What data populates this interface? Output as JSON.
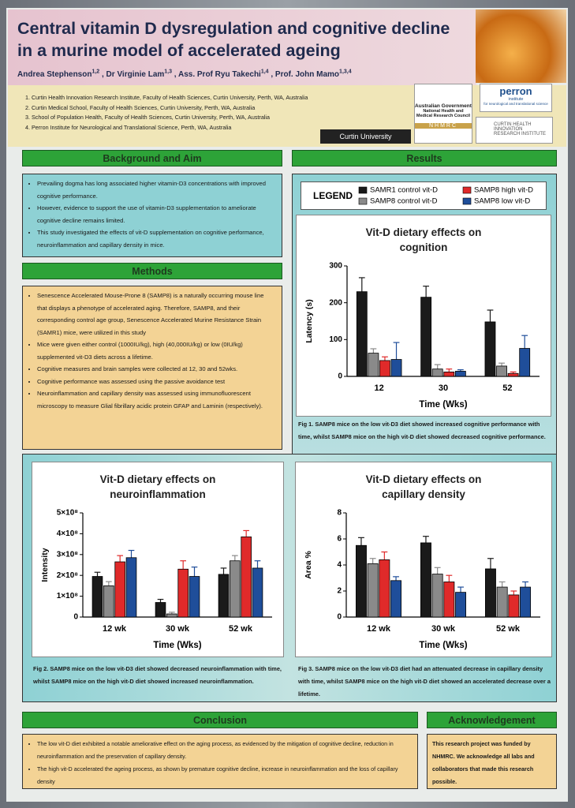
{
  "header": {
    "title": "Central vitamin D dysregulation and cognitive decline in a murine model of accelerated ageing",
    "authors": [
      {
        "name": "Andrea Stephenson",
        "sup": "1,2"
      },
      {
        "name": "Dr Virginie Lam",
        "sup": "1,3"
      },
      {
        "name": "Ass. Prof Ryu Takechi",
        "sup": "1,4"
      },
      {
        "name": "Prof. John Mamo",
        "sup": "1,3,4"
      }
    ],
    "affiliations": [
      "1. Curtin Health Innovation Research Institute, Faculty of Health Sciences, Curtin University, Perth, WA, Australia",
      "2. Curtin Medical School, Faculty of Health Sciences, Curtin University, Perth, WA, Australia",
      "3. School of Population Health, Faculty of Health Sciences, Curtin University, Perth, WA, Australia",
      "4. Perron Institute for Neurological and Translational Science, Perth, WA, Australia"
    ],
    "logos": {
      "gov": "Australian Government",
      "council": "National Health and Medical Research Council",
      "nhmrc": "NHMRC",
      "curtin": "Curtin University",
      "perron": "perron",
      "perron_sub": "institute",
      "perron_tag": "for neurological and translational science",
      "chiri": "CURTIN HEALTH INNOVATION RESEARCH INSTITUTE"
    }
  },
  "background": {
    "heading": "Background and Aim",
    "bullets": [
      "Prevailing dogma has long associated higher vitamin-D3 concentrations with improved cognitive performance.",
      "However, evidence to support the use of vitamin-D3 supplementation to ameliorate cognitive decline remains limited.",
      "This study investigated the effects of vit-D supplementation on cognitive performance, neuroinflammation and capillary density in mice."
    ]
  },
  "methods": {
    "heading": "Methods",
    "bullets": [
      "Senescence Accelerated Mouse-Prone 8 (SAMP8) is a naturally occurring mouse line that displays a phenotype of accelerated aging. Therefore, SAMP8, and their corresponding control age group, Senescence Accelerated Murine Resistance Strain (SAMR1) mice, were utilized in this study",
      "Mice were given either control (1000IU/kg), high (40,000IU/kg) or low (0IU/kg) supplemented vit-D3 diets across a lifetime.",
      "Cognitive measures and brain samples were collected at 12, 30 and 52wks.",
      "Cognitive performance was assessed using the passive avoidance test",
      "Neuroinflammation and capillary density was assessed using immunofluorescent microscopy to measure Glial fibrillary acidic protein GFAP and Laminin (respectively)."
    ]
  },
  "results": {
    "heading": "Results",
    "legend_title": "LEGEND",
    "captions": [
      "Fig 1. SAMP8 mice on the low vit-D3 diet showed increased cognitive performance with time, whilst SAMP8 mice on the high vit-D diet showed decreased cognitive performance.",
      "Fig 2. SAMP8 mice on the low vit-D3 diet showed decreased neuroinflammation with time, whilst SAMP8 mice on the high vit-D diet showed increased neuroinflammation.",
      "Fig 3. SAMP8 mice on the low vit-D3 diet had an attenuated decrease in capillary density with time, whilst SAMP8 mice on the high vit-D diet showed an accelerated decrease over a lifetime."
    ]
  },
  "conclusion": {
    "heading": "Conclusion",
    "bullets": [
      "The low vit-D diet exhibited a notable ameliorative effect on the aging process, as evidenced by the mitigation of cognitive decline, reduction in neuroinflammation and the preservation of capillary density.",
      "The high vit-D accelerated the ageing process, as shown by premature cognitive decline, increase in neuroinflammation and the loss of capillary density"
    ]
  },
  "acknowledgement": {
    "heading": "Acknowledgement",
    "text": "This research project was funded by NHMRC. We acknowledge all labs and collaborators that made this research possible."
  },
  "chart_data": [
    {
      "type": "bar",
      "title": "Vit-D dietary effects on cognition",
      "ylabel": "Latency (s)",
      "xlabel": "Time (Wks)",
      "categories": [
        "12",
        "30",
        "52"
      ],
      "ylim": [
        0,
        300
      ],
      "yticks": [
        0,
        100,
        200,
        300
      ],
      "series": [
        {
          "name": "SAMR1 control vit-D",
          "color": "#1a1a1a",
          "values": [
            230,
            215,
            148
          ],
          "errors": [
            38,
            30,
            32
          ]
        },
        {
          "name": "SAMP8 control vit-D",
          "color": "#8a8a8a",
          "values": [
            63,
            20,
            28
          ],
          "errors": [
            12,
            12,
            8
          ]
        },
        {
          "name": "SAMP8 high vit-D",
          "color": "#e02a2a",
          "values": [
            43,
            12,
            8
          ],
          "errors": [
            10,
            8,
            4
          ]
        },
        {
          "name": "SAMP8 low vit-D",
          "color": "#1f4e9a",
          "values": [
            46,
            14,
            76
          ],
          "errors": [
            46,
            4,
            35
          ]
        }
      ]
    },
    {
      "type": "bar",
      "title": "Vit-D dietary effects on neuroinflammation",
      "ylabel": "Intensity",
      "xlabel": "Time (Wks)",
      "categories": [
        "12 wk",
        "30 wk",
        "52 wk"
      ],
      "ylim": [
        0,
        500000000
      ],
      "yticks": [
        0,
        {
          "value": 100000000,
          "label": "1×10⁸"
        },
        {
          "value": 200000000,
          "label": "2×10⁸"
        },
        {
          "value": 300000000,
          "label": "3×10⁸"
        },
        {
          "value": 400000000,
          "label": "4×10⁸"
        },
        {
          "value": 500000000,
          "label": "5×10⁸"
        }
      ],
      "series": [
        {
          "color": "#1a1a1a",
          "values": [
            195000000,
            70000000,
            205000000
          ],
          "errors": [
            20000000,
            15000000,
            30000000
          ]
        },
        {
          "color": "#8a8a8a",
          "values": [
            150000000,
            15000000,
            270000000
          ],
          "errors": [
            20000000,
            8000000,
            25000000
          ]
        },
        {
          "color": "#e02a2a",
          "values": [
            265000000,
            230000000,
            385000000
          ],
          "errors": [
            30000000,
            40000000,
            30000000
          ]
        },
        {
          "color": "#1f4e9a",
          "values": [
            285000000,
            195000000,
            235000000
          ],
          "errors": [
            35000000,
            45000000,
            35000000
          ]
        }
      ]
    },
    {
      "type": "bar",
      "title": "Vit-D dietary effects on capillary density",
      "ylabel": "Area %",
      "xlabel": "Time (Wks)",
      "categories": [
        "12 wk",
        "30 wk",
        "52 wk"
      ],
      "ylim": [
        0,
        8
      ],
      "yticks": [
        0,
        2,
        4,
        6,
        8
      ],
      "series": [
        {
          "color": "#1a1a1a",
          "values": [
            5.5,
            5.7,
            3.7
          ],
          "errors": [
            0.6,
            0.5,
            0.8
          ]
        },
        {
          "color": "#8a8a8a",
          "values": [
            4.1,
            3.3,
            2.3
          ],
          "errors": [
            0.4,
            0.5,
            0.4
          ]
        },
        {
          "color": "#e02a2a",
          "values": [
            4.4,
            2.7,
            1.7
          ],
          "errors": [
            0.6,
            0.5,
            0.3
          ]
        },
        {
          "color": "#1f4e9a",
          "values": [
            2.8,
            1.9,
            2.3
          ],
          "errors": [
            0.3,
            0.4,
            0.4
          ]
        }
      ]
    }
  ]
}
